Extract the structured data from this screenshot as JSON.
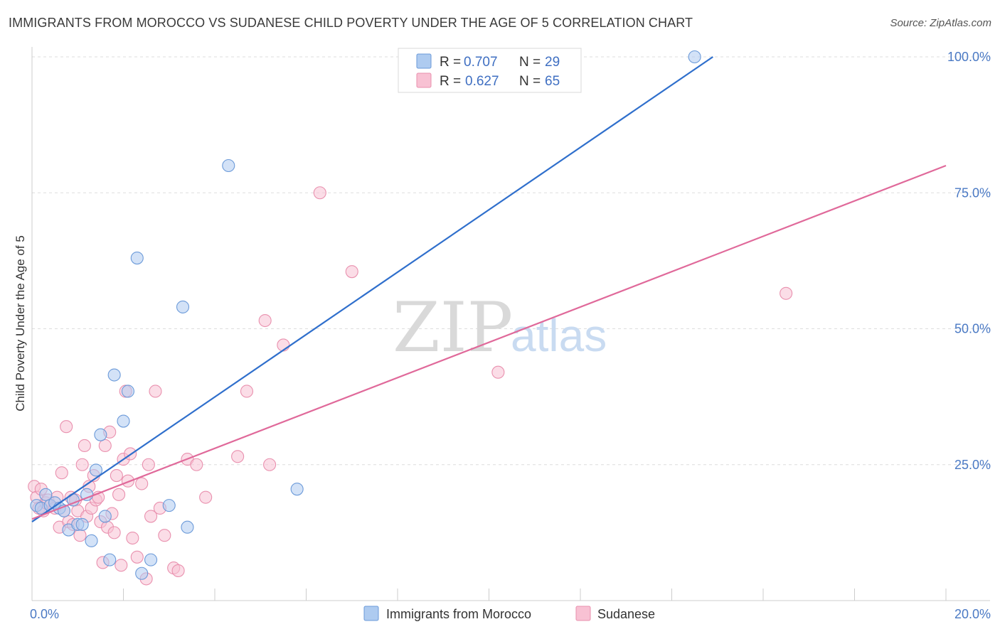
{
  "title": "IMMIGRANTS FROM MOROCCO VS SUDANESE CHILD POVERTY UNDER THE AGE OF 5 CORRELATION CHART",
  "source": "Source: ZipAtlas.com",
  "watermark": {
    "zip": "ZIP",
    "atlas": "atlas"
  },
  "legend": {
    "rows": [
      {
        "r_label": "R =",
        "r_value": "0.707",
        "n_label": "N =",
        "n_value": "29",
        "color": "#aecbf0",
        "stroke": "#6b9ad9"
      },
      {
        "r_label": "R =",
        "r_value": "0.627",
        "n_label": "N =",
        "n_value": "65",
        "color": "#f8c1d3",
        "stroke": "#e990ae"
      }
    ]
  },
  "bottom_legend": [
    {
      "label": "Immigrants from Morocco",
      "color": "#aecbf0",
      "stroke": "#6b9ad9"
    },
    {
      "label": "Sudanese",
      "color": "#f8c1d3",
      "stroke": "#e990ae"
    }
  ],
  "chart_data": {
    "type": "scatter",
    "title": "IMMIGRANTS FROM MOROCCO VS SUDANESE CHILD POVERTY UNDER THE AGE OF 5 CORRELATION CHART",
    "xlabel": "",
    "ylabel": "Child Poverty Under the Age of 5",
    "xlim": [
      0,
      20
    ],
    "ylim": [
      0,
      100
    ],
    "x_tick_labels": [
      "0.0%",
      "20.0%"
    ],
    "y_ticks": [
      25,
      50,
      75,
      100
    ],
    "y_tick_labels": [
      "25.0%",
      "50.0%",
      "75.0%",
      "100.0%"
    ],
    "grid": true,
    "series": [
      {
        "name": "Immigrants from Morocco",
        "color": "#aecbf0",
        "stroke": "#6b9ad9",
        "line_color": "#2f6fcc",
        "trend": {
          "x": [
            0,
            14.9
          ],
          "y": [
            14.5,
            100
          ]
        },
        "points": [
          [
            0.1,
            17.5
          ],
          [
            0.2,
            17.0
          ],
          [
            0.3,
            19.5
          ],
          [
            0.4,
            17.5
          ],
          [
            0.5,
            18.0
          ],
          [
            0.6,
            17.0
          ],
          [
            0.7,
            16.5
          ],
          [
            0.8,
            13.0
          ],
          [
            0.9,
            18.5
          ],
          [
            1.0,
            14.0
          ],
          [
            1.1,
            14.0
          ],
          [
            1.2,
            19.5
          ],
          [
            1.3,
            11.0
          ],
          [
            1.4,
            24.0
          ],
          [
            1.5,
            30.5
          ],
          [
            1.6,
            15.5
          ],
          [
            1.7,
            7.5
          ],
          [
            1.8,
            41.5
          ],
          [
            2.0,
            33.0
          ],
          [
            2.1,
            38.5
          ],
          [
            2.3,
            63.0
          ],
          [
            2.4,
            5.0
          ],
          [
            2.6,
            7.5
          ],
          [
            3.0,
            17.5
          ],
          [
            3.3,
            54.0
          ],
          [
            3.4,
            13.5
          ],
          [
            4.3,
            80.0
          ],
          [
            5.8,
            20.5
          ],
          [
            14.5,
            100.0
          ]
        ]
      },
      {
        "name": "Sudanese",
        "color": "#f8c1d3",
        "stroke": "#e990ae",
        "line_color": "#e0699a",
        "trend": {
          "x": [
            0,
            20
          ],
          "y": [
            15.0,
            80.0
          ]
        },
        "points": [
          [
            0.05,
            21.0
          ],
          [
            0.1,
            19.0
          ],
          [
            0.15,
            17.0
          ],
          [
            0.2,
            20.5
          ],
          [
            0.25,
            16.5
          ],
          [
            0.3,
            18.0
          ],
          [
            0.35,
            18.5
          ],
          [
            0.4,
            17.5
          ],
          [
            0.5,
            17.0
          ],
          [
            0.55,
            19.0
          ],
          [
            0.6,
            13.5
          ],
          [
            0.65,
            23.5
          ],
          [
            0.7,
            16.5
          ],
          [
            0.75,
            32.0
          ],
          [
            0.8,
            14.5
          ],
          [
            0.85,
            19.0
          ],
          [
            0.9,
            14.0
          ],
          [
            0.95,
            18.5
          ],
          [
            1.0,
            16.5
          ],
          [
            1.05,
            12.0
          ],
          [
            1.1,
            25.0
          ],
          [
            1.15,
            28.5
          ],
          [
            1.2,
            15.5
          ],
          [
            1.25,
            21.0
          ],
          [
            1.3,
            17.0
          ],
          [
            1.35,
            23.0
          ],
          [
            1.4,
            18.5
          ],
          [
            1.45,
            19.0
          ],
          [
            1.5,
            14.5
          ],
          [
            1.55,
            7.0
          ],
          [
            1.6,
            28.5
          ],
          [
            1.65,
            13.5
          ],
          [
            1.7,
            31.0
          ],
          [
            1.75,
            16.0
          ],
          [
            1.8,
            12.5
          ],
          [
            1.85,
            23.0
          ],
          [
            1.9,
            19.5
          ],
          [
            1.95,
            6.5
          ],
          [
            2.0,
            26.0
          ],
          [
            2.05,
            38.5
          ],
          [
            2.1,
            22.0
          ],
          [
            2.15,
            27.0
          ],
          [
            2.2,
            11.5
          ],
          [
            2.3,
            8.0
          ],
          [
            2.4,
            21.5
          ],
          [
            2.5,
            4.0
          ],
          [
            2.55,
            25.0
          ],
          [
            2.6,
            15.5
          ],
          [
            2.7,
            38.5
          ],
          [
            2.8,
            17.0
          ],
          [
            2.9,
            12.0
          ],
          [
            3.1,
            6.0
          ],
          [
            3.2,
            5.5
          ],
          [
            3.4,
            26.0
          ],
          [
            3.6,
            25.0
          ],
          [
            3.8,
            19.0
          ],
          [
            4.5,
            26.5
          ],
          [
            4.7,
            38.5
          ],
          [
            5.1,
            51.5
          ],
          [
            5.2,
            25.0
          ],
          [
            5.5,
            47.0
          ],
          [
            6.3,
            75.0
          ],
          [
            7.0,
            60.5
          ],
          [
            10.2,
            42.0
          ],
          [
            16.5,
            56.5
          ]
        ]
      }
    ]
  }
}
